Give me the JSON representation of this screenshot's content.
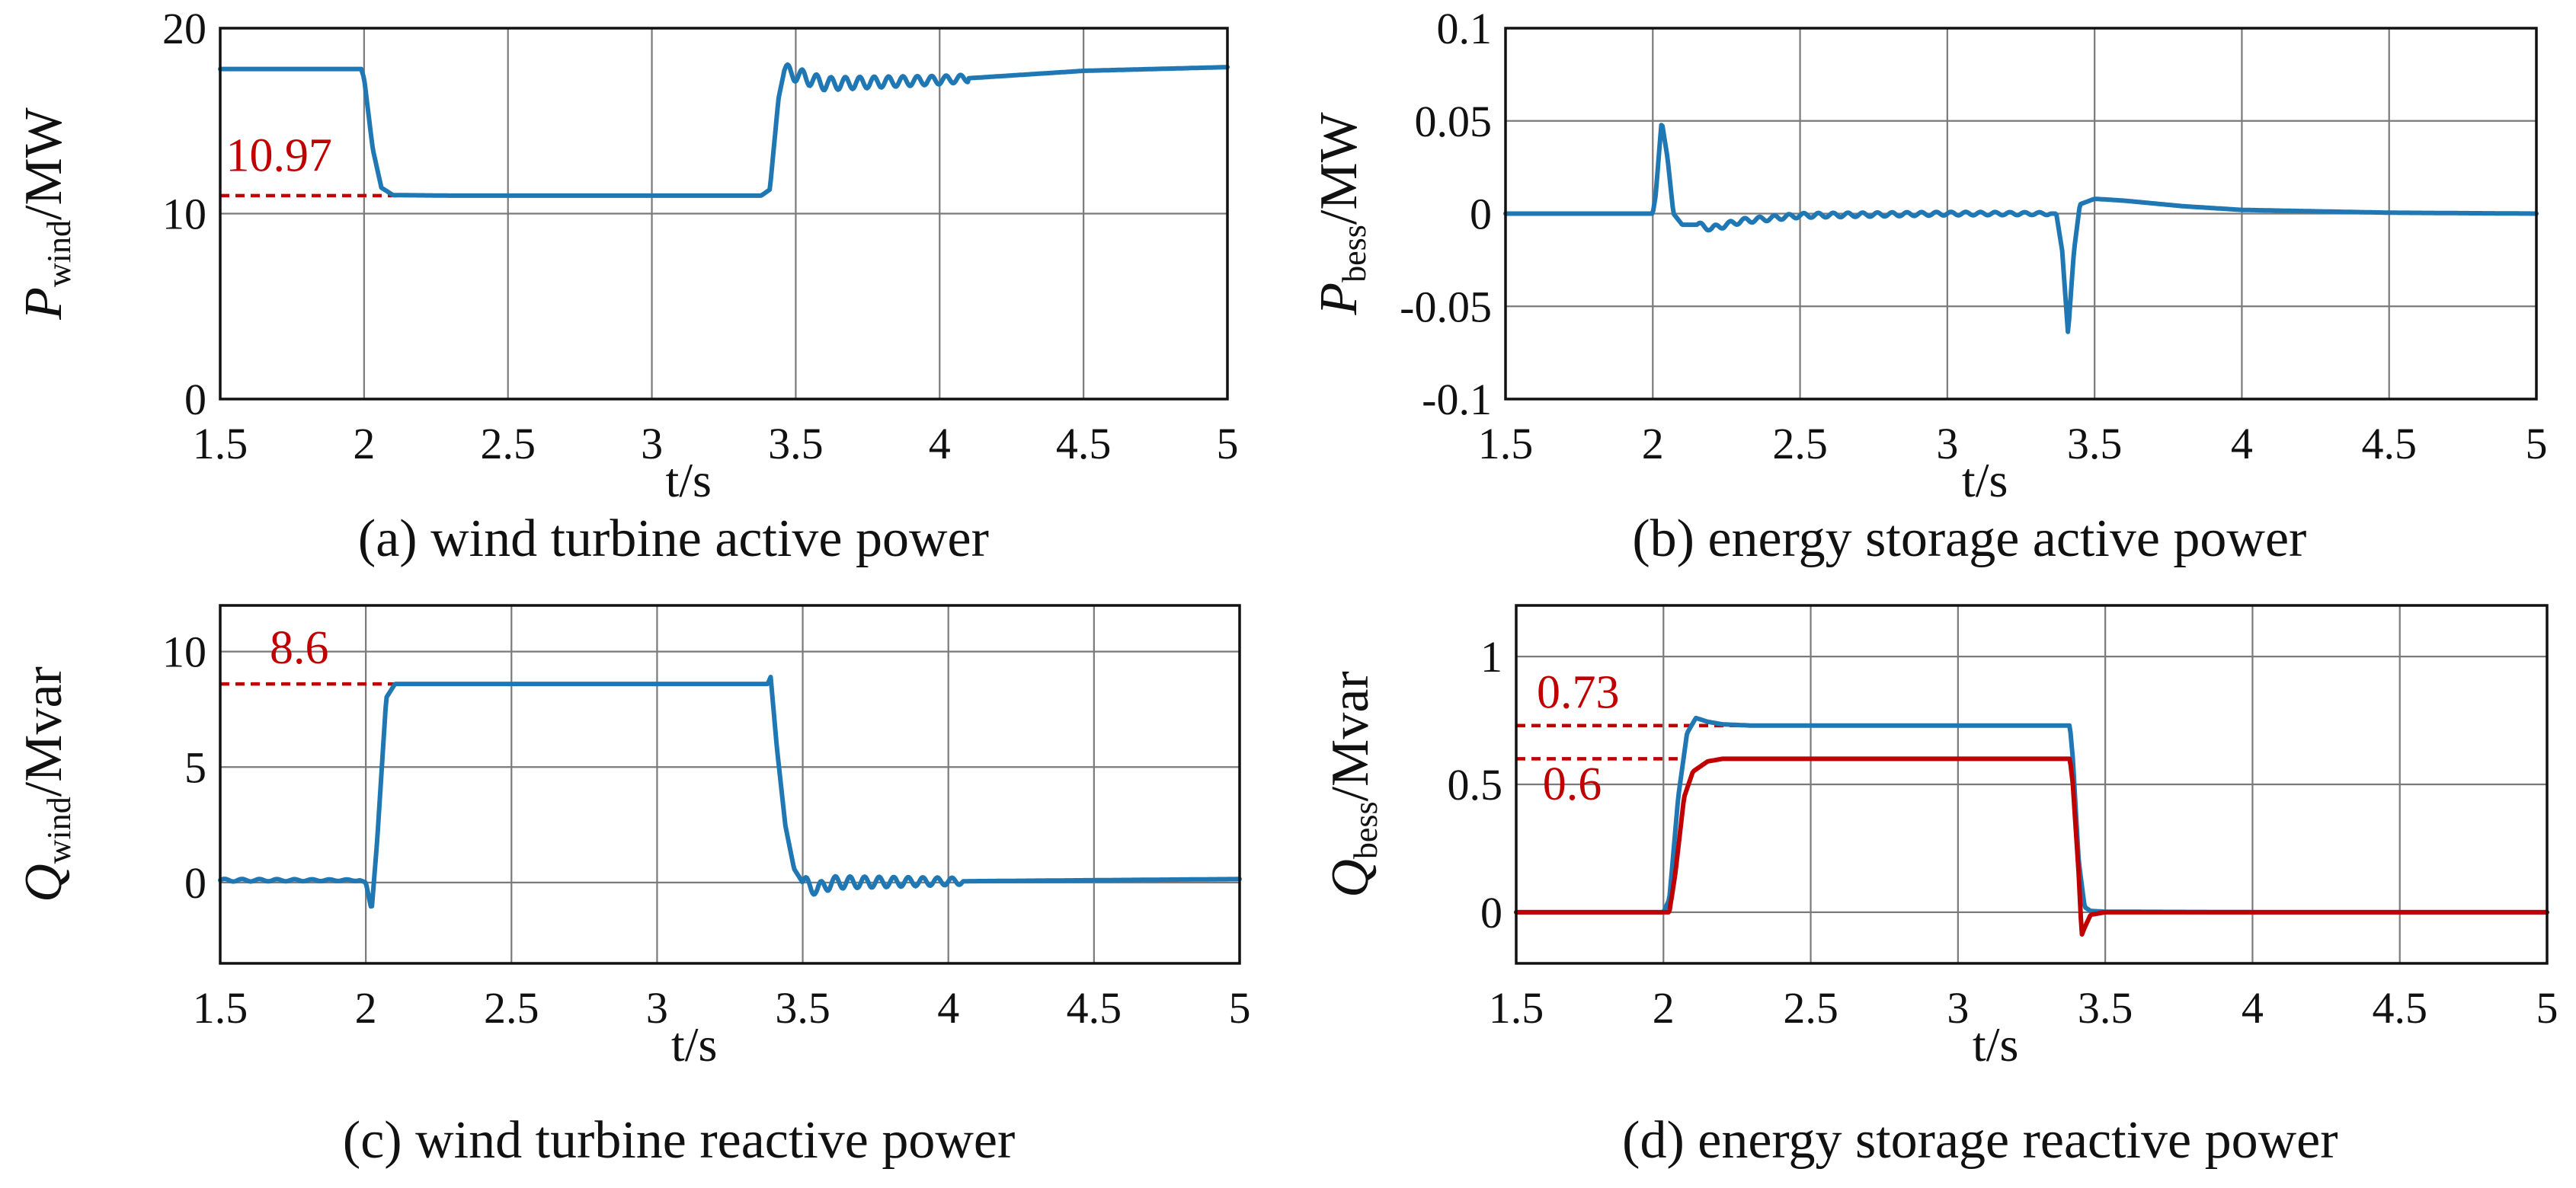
{
  "colors": {
    "blue": "#1f77b4",
    "red": "#c00000",
    "grid": "#7a7a7a",
    "frame": "#111111"
  },
  "chart_data": [
    {
      "type": "line",
      "id": "a",
      "title": "(a) wind turbine active power",
      "xlabel": "t/s",
      "ylabel": {
        "base": "P",
        "sub": "wind",
        "unit": "/MW"
      },
      "xlim": [
        1.5,
        5
      ],
      "ylim": [
        0,
        20
      ],
      "xticks": [
        1.5,
        2,
        2.5,
        3,
        3.5,
        4,
        4.5,
        5
      ],
      "xtick_labels": [
        "1.5",
        "2",
        "2.5",
        "3",
        "3.5",
        "4",
        "4.5",
        "5"
      ],
      "yticks": [
        0,
        10,
        20
      ],
      "ytick_labels": [
        "0",
        "10",
        "20"
      ],
      "grid": true,
      "series": [
        {
          "name": "P_wind",
          "color": "blue",
          "x": [
            1.5,
            1.99,
            2.0,
            2.03,
            2.06,
            2.1,
            2.3,
            3.0,
            3.38,
            3.41,
            3.44,
            3.46,
            3.5,
            3.6,
            3.8,
            4.0,
            4.5,
            5.0
          ],
          "values": [
            17.8,
            17.8,
            17.3,
            13.5,
            11.4,
            11.0,
            10.97,
            10.97,
            10.97,
            11.3,
            16.2,
            17.7,
            17.5,
            17.0,
            17.1,
            17.2,
            17.7,
            17.9
          ],
          "osc": [
            {
              "from": 3.46,
              "to": 4.1,
              "amp": 0.4,
              "period": 0.05
            }
          ]
        }
      ],
      "annotations": [
        {
          "text": "10.97",
          "y": 10.97,
          "x0": 1.5,
          "x1": 2.35,
          "color": "red",
          "label_x": 1.52,
          "label_y": 12.3
        }
      ]
    },
    {
      "type": "line",
      "id": "b",
      "title": "(b) energy storage active power",
      "xlabel": "t/s",
      "ylabel": {
        "base": "P",
        "sub": "bess",
        "unit": "/MW"
      },
      "xlim": [
        1.5,
        5
      ],
      "ylim": [
        -0.1,
        0.1
      ],
      "xticks": [
        1.5,
        2,
        2.5,
        3,
        3.5,
        4,
        4.5,
        5
      ],
      "xtick_labels": [
        "1.5",
        "2",
        "2.5",
        "3",
        "3.5",
        "4",
        "4.5",
        "5"
      ],
      "yticks": [
        -0.1,
        -0.05,
        0,
        0.05,
        0.1
      ],
      "ytick_labels": [
        "-0.1",
        "-0.05",
        "0",
        "0.05",
        "0.1"
      ],
      "grid": true,
      "series": [
        {
          "name": "P_bess",
          "color": "blue",
          "x": [
            1.5,
            2.0,
            2.01,
            2.03,
            2.05,
            2.07,
            2.1,
            2.15,
            2.2,
            2.3,
            2.5,
            3.0,
            3.37,
            3.39,
            3.41,
            3.43,
            3.45,
            3.5,
            3.6,
            3.8,
            4.0,
            4.5,
            5.0
          ],
          "values": [
            0,
            0,
            0.01,
            0.05,
            0.03,
            0.0,
            -0.006,
            -0.006,
            -0.008,
            -0.004,
            -0.001,
            0,
            0,
            -0.02,
            -0.065,
            -0.02,
            0.005,
            0.008,
            0.007,
            0.004,
            0.002,
            0.0005,
            0
          ],
          "osc": [
            {
              "from": 2.15,
              "to": 3.35,
              "amp": 0.0015,
              "period": 0.05
            }
          ]
        }
      ],
      "annotations": []
    },
    {
      "type": "line",
      "id": "c",
      "title": "(c)  wind turbine reactive power",
      "xlabel": "t/s",
      "ylabel": {
        "base": "Q",
        "sub": "wind",
        "unit": "/Mvar"
      },
      "xlim": [
        1.5,
        5
      ],
      "ylim": [
        -3.5,
        12
      ],
      "xticks": [
        1.5,
        2,
        2.5,
        3,
        3.5,
        4,
        4.5,
        5
      ],
      "xtick_labels": [
        "1.5",
        "2",
        "2.5",
        "3",
        "3.5",
        "4",
        "4.5",
        "5"
      ],
      "yticks": [
        0,
        5,
        10
      ],
      "ytick_labels": [
        "0",
        "5",
        "10"
      ],
      "grid": true,
      "series": [
        {
          "name": "Q_wind",
          "color": "blue",
          "x": [
            1.5,
            1.98,
            2.0,
            2.02,
            2.04,
            2.07,
            2.1,
            2.2,
            3.0,
            3.38,
            3.39,
            3.41,
            3.44,
            3.47,
            3.5,
            3.55,
            3.6,
            4.0,
            4.5,
            5.0
          ],
          "values": [
            0.1,
            0.1,
            0.0,
            -1.2,
            2.0,
            8.0,
            8.6,
            8.6,
            8.6,
            8.6,
            8.9,
            6.0,
            2.5,
            0.6,
            0.0,
            -0.3,
            0.0,
            0.05,
            0.1,
            0.15
          ],
          "osc": [
            {
              "from": 3.5,
              "to": 4.05,
              "amp": 0.3,
              "period": 0.05
            },
            {
              "from": 1.5,
              "to": 1.98,
              "amp": 0.06,
              "period": 0.06
            }
          ]
        }
      ],
      "annotations": [
        {
          "text": "8.6",
          "y": 8.6,
          "x0": 1.5,
          "x1": 2.3,
          "color": "red",
          "label_x": 1.67,
          "label_y": 9.5
        }
      ]
    },
    {
      "type": "line",
      "id": "d",
      "title": "(d) energy storage reactive power",
      "xlabel": "t/s",
      "ylabel": {
        "base": "Q",
        "sub": "bess",
        "unit": "/Mvar"
      },
      "xlim": [
        1.5,
        5
      ],
      "ylim": [
        -0.2,
        1.2
      ],
      "xticks": [
        1.5,
        2,
        2.5,
        3,
        3.5,
        4,
        4.5,
        5
      ],
      "xtick_labels": [
        "1.5",
        "2",
        "2.5",
        "3",
        "3.5",
        "4",
        "4.5",
        "5"
      ],
      "yticks": [
        0,
        0.5,
        1
      ],
      "ytick_labels": [
        "0",
        "0.5",
        "1"
      ],
      "grid": true,
      "series": [
        {
          "name": "Q_bess_blue",
          "color": "blue",
          "x": [
            1.5,
            2.0,
            2.02,
            2.05,
            2.08,
            2.11,
            2.15,
            2.2,
            2.3,
            3.0,
            3.38,
            3.39,
            3.41,
            3.43,
            3.45,
            3.5,
            4.0,
            5.0
          ],
          "values": [
            0,
            0,
            0.05,
            0.45,
            0.7,
            0.76,
            0.745,
            0.735,
            0.73,
            0.73,
            0.73,
            0.6,
            0.2,
            0.02,
            0.005,
            0.002,
            0,
            0
          ]
        },
        {
          "name": "Q_bess_red",
          "color": "red",
          "x": [
            1.5,
            2.02,
            2.04,
            2.07,
            2.1,
            2.15,
            2.2,
            2.5,
            3.0,
            3.38,
            3.39,
            3.41,
            3.42,
            3.43,
            3.45,
            3.5,
            4.0,
            5.0
          ],
          "values": [
            0,
            0,
            0.15,
            0.45,
            0.55,
            0.59,
            0.6,
            0.6,
            0.6,
            0.6,
            0.5,
            0.15,
            -0.09,
            -0.06,
            -0.01,
            0,
            0,
            0
          ]
        }
      ],
      "annotations": [
        {
          "text": "0.73",
          "y": 0.73,
          "x0": 1.5,
          "x1": 2.5,
          "color": "red",
          "label_x": 1.57,
          "label_y": 0.8
        },
        {
          "text": "0.6",
          "y": 0.6,
          "x0": 1.5,
          "x1": 2.05,
          "color": "red",
          "label_x": 1.59,
          "label_y": 0.44
        }
      ]
    }
  ]
}
